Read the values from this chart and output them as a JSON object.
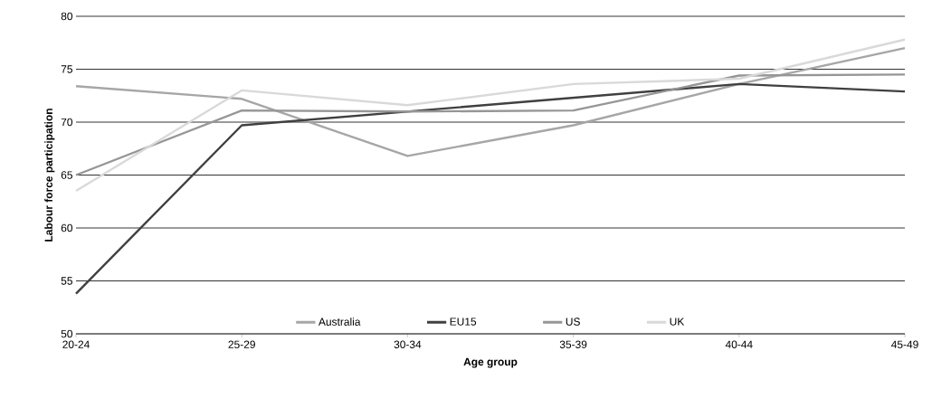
{
  "chart_data": {
    "type": "line",
    "xlabel": "Age group",
    "ylabel": "Labour force participation",
    "categories": [
      "20-24",
      "25-29",
      "30-34",
      "35-39",
      "40-44",
      "45-49"
    ],
    "series": [
      {
        "name": "Australia",
        "color": "#a6a6a6",
        "values": [
          73.4,
          72.2,
          66.8,
          69.7,
          73.6,
          77.0
        ]
      },
      {
        "name": "EU15",
        "color": "#404040",
        "values": [
          53.8,
          69.7,
          71.0,
          72.3,
          73.6,
          72.9
        ]
      },
      {
        "name": "US",
        "color": "#969696",
        "values": [
          65.0,
          71.1,
          71.0,
          71.1,
          74.4,
          74.5
        ]
      },
      {
        "name": "UK",
        "color": "#d9d9d9",
        "values": [
          63.5,
          73.0,
          71.6,
          73.6,
          74.1,
          77.8
        ]
      }
    ],
    "ylim": [
      50,
      80
    ],
    "yticks": [
      50,
      55,
      60,
      65,
      70,
      75,
      80
    ],
    "grid": "y",
    "legend": "bottom",
    "marker": "none",
    "line_style": "solid"
  }
}
